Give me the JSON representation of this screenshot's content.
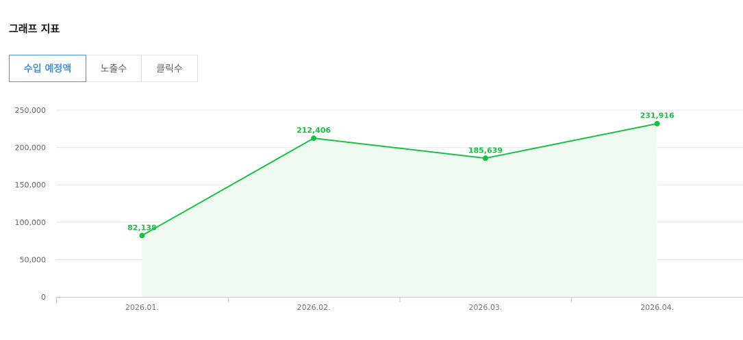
{
  "section": {
    "title": "그래프 지표"
  },
  "tabs": [
    {
      "label": "수입 예정액",
      "active": true
    },
    {
      "label": "노출수",
      "active": false
    },
    {
      "label": "클릭수",
      "active": false
    }
  ],
  "colors": {
    "line": "#18c144",
    "area": "#effaf1",
    "active_tab": "#4a90e2",
    "grid": "#e6e6e6"
  },
  "chart_data": {
    "type": "area",
    "categories": [
      "2026.01.",
      "2026.02.",
      "2026.03.",
      "2026.04."
    ],
    "series": [
      {
        "values": [
          82138,
          212406,
          185639,
          231916
        ]
      }
    ],
    "data_labels": [
      "82,138",
      "212,406",
      "185,639",
      "231,916"
    ],
    "yticks": [
      0,
      50000,
      100000,
      150000,
      200000,
      250000
    ],
    "ytick_labels": [
      "0",
      "50,000",
      "100,000",
      "150,000",
      "200,000",
      "250,000"
    ],
    "ylim": [
      0,
      250000
    ],
    "grid": true,
    "legend": "none"
  }
}
